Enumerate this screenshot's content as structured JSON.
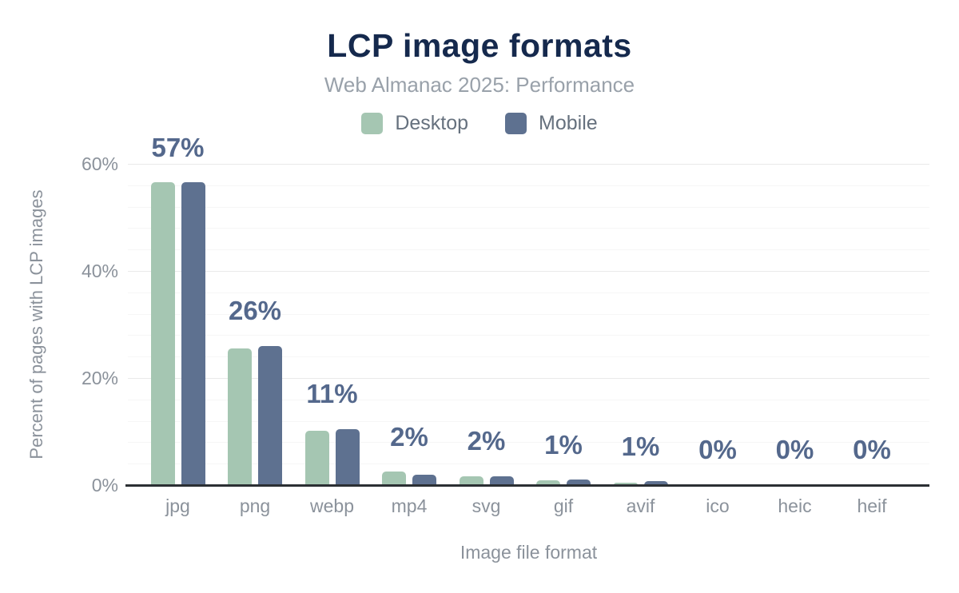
{
  "chart_data": {
    "type": "bar",
    "title": "LCP image formats",
    "subtitle": "Web Almanac 2025: Performance",
    "xlabel": "Image file format",
    "ylabel": "Percent of pages with LCP images",
    "categories": [
      "jpg",
      "png",
      "webp",
      "mp4",
      "svg",
      "gif",
      "avif",
      "ico",
      "heic",
      "heif"
    ],
    "series": [
      {
        "name": "Desktop",
        "color": "#a5c6b2",
        "values": [
          56.5,
          25.5,
          10.1,
          2.5,
          1.7,
          0.9,
          0.5,
          0,
          0,
          0
        ]
      },
      {
        "name": "Mobile",
        "color": "#5e7190",
        "values": [
          56.5,
          26.0,
          10.5,
          1.9,
          1.7,
          1.0,
          0.7,
          0,
          0,
          0
        ]
      }
    ],
    "data_labels": [
      "57%",
      "26%",
      "11%",
      "2%",
      "2%",
      "1%",
      "1%",
      "0%",
      "0%",
      "0%"
    ],
    "y_ticks": [
      {
        "value": 0,
        "label": "0%"
      },
      {
        "value": 20,
        "label": "20%"
      },
      {
        "value": 40,
        "label": "40%"
      },
      {
        "value": 60,
        "label": "60%"
      }
    ],
    "ylim": [
      0,
      60
    ],
    "grid": {
      "minor_step": 4,
      "major_step": 20,
      "minor_color": "#f6f6f6",
      "major_color": "#e9e9e9"
    },
    "legend_position": "top",
    "colors": {
      "title": "#15294d",
      "subtitle": "#99a1aa",
      "data_label": "#54688c",
      "axis_text": "#8b929b",
      "axis_line": "#2b2f33",
      "legend_text": "#66717e"
    }
  }
}
